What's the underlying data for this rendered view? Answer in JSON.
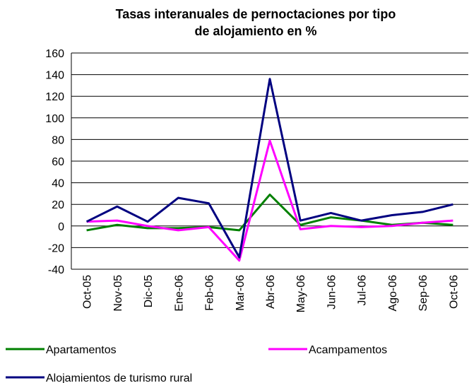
{
  "chart_data": {
    "type": "line",
    "title": "Tasas interanuales de pernoctaciones por tipo de alojamiento en %",
    "categories": [
      "Oct-05",
      "Nov-05",
      "Dic-05",
      "Ene-06",
      "Feb-06",
      "Mar-06",
      "Abr-06",
      "May-06",
      "Jun-06",
      "Jul-06",
      "Ago-06",
      "Sep-06",
      "Oct-06"
    ],
    "series": [
      {
        "name": "Apartamentos",
        "color": "#008000",
        "values": [
          -4,
          1,
          -2,
          -2,
          -1,
          -4,
          29,
          1,
          8,
          5,
          1,
          3,
          1
        ]
      },
      {
        "name": "Acampamentos",
        "color": "#ff00ff",
        "values": [
          4,
          5,
          0,
          -4,
          -1,
          -32,
          79,
          -3,
          0,
          -1,
          0,
          3,
          5
        ]
      },
      {
        "name": "Alojamientos de turismo rural",
        "color": "#000080",
        "values": [
          4,
          18,
          4,
          26,
          21,
          -29,
          136,
          5,
          12,
          5,
          10,
          13,
          20
        ]
      }
    ],
    "ylim": [
      -40,
      160
    ],
    "yticks": [
      -40,
      -20,
      0,
      20,
      40,
      60,
      80,
      100,
      120,
      140,
      160
    ],
    "grid": true
  }
}
